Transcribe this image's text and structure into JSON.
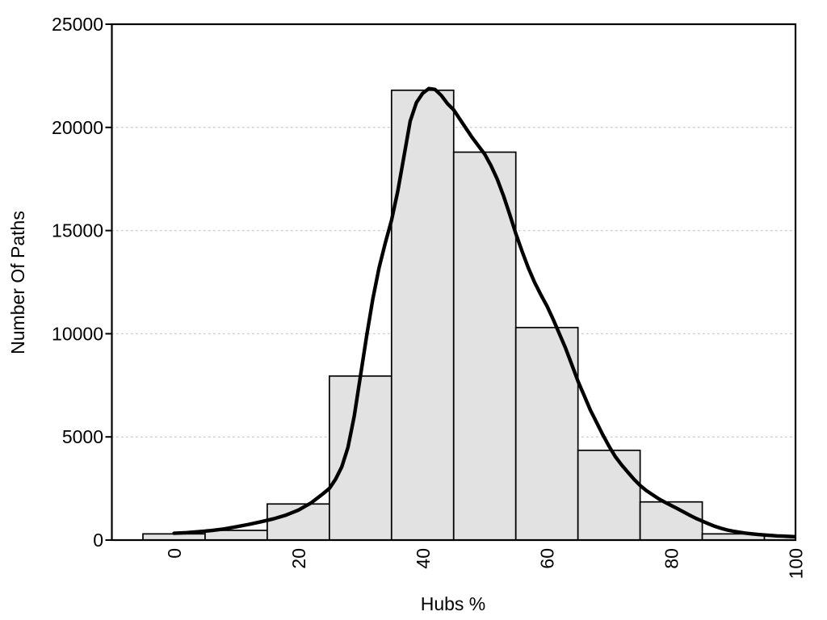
{
  "chart_data": {
    "type": "bar",
    "subtype": "histogram-with-density-curve",
    "title": "",
    "xlabel": "Hubs %",
    "ylabel": "Number Of Paths",
    "xlim": [
      -10,
      100
    ],
    "ylim": [
      0,
      25000
    ],
    "grid": "dotted-horizontal",
    "legend": "none",
    "x_ticks": [
      0,
      20,
      40,
      60,
      80,
      100
    ],
    "x_tick_labels": [
      "0",
      "20",
      "40",
      "60",
      "80",
      "100"
    ],
    "x_tick_label_rotation_deg": -90,
    "y_ticks": [
      0,
      5000,
      10000,
      15000,
      20000,
      25000
    ],
    "y_tick_labels": [
      "0",
      "5000",
      "10000",
      "15000",
      "20000",
      "25000"
    ],
    "grid_levels": [
      5000,
      10000,
      15000,
      20000
    ],
    "bin_width": 10,
    "bins": [
      {
        "start": -5,
        "end": 5,
        "count": 300
      },
      {
        "start": 5,
        "end": 15,
        "count": 470
      },
      {
        "start": 15,
        "end": 25,
        "count": 1750
      },
      {
        "start": 25,
        "end": 35,
        "count": 7950
      },
      {
        "start": 35,
        "end": 45,
        "count": 21800
      },
      {
        "start": 45,
        "end": 55,
        "count": 18800
      },
      {
        "start": 55,
        "end": 65,
        "count": 10300
      },
      {
        "start": 65,
        "end": 75,
        "count": 4350
      },
      {
        "start": 75,
        "end": 85,
        "count": 1850
      },
      {
        "start": 85,
        "end": 95,
        "count": 300
      },
      {
        "start": 95,
        "end": 105,
        "count": 200
      }
    ],
    "density_curve_points": [
      [
        0,
        330
      ],
      [
        2,
        360
      ],
      [
        4,
        405
      ],
      [
        6,
        460
      ],
      [
        8,
        535
      ],
      [
        10,
        640
      ],
      [
        12,
        760
      ],
      [
        14,
        890
      ],
      [
        16,
        1030
      ],
      [
        18,
        1210
      ],
      [
        20,
        1450
      ],
      [
        22,
        1790
      ],
      [
        24,
        2250
      ],
      [
        25,
        2500
      ],
      [
        26,
        2950
      ],
      [
        27,
        3550
      ],
      [
        28,
        4500
      ],
      [
        29,
        6000
      ],
      [
        30,
        7950
      ],
      [
        31,
        9900
      ],
      [
        32,
        11700
      ],
      [
        33,
        13200
      ],
      [
        34,
        14400
      ],
      [
        35,
        15500
      ],
      [
        36,
        16900
      ],
      [
        37,
        18600
      ],
      [
        38,
        20300
      ],
      [
        39,
        21200
      ],
      [
        40,
        21650
      ],
      [
        41,
        21880
      ],
      [
        42,
        21840
      ],
      [
        43,
        21550
      ],
      [
        44,
        21150
      ],
      [
        45,
        20850
      ],
      [
        46,
        20400
      ],
      [
        47,
        19950
      ],
      [
        48,
        19500
      ],
      [
        49,
        19100
      ],
      [
        50,
        18700
      ],
      [
        51,
        18150
      ],
      [
        52,
        17500
      ],
      [
        53,
        16700
      ],
      [
        54,
        15800
      ],
      [
        55,
        14850
      ],
      [
        56,
        14000
      ],
      [
        57,
        13200
      ],
      [
        58,
        12500
      ],
      [
        59,
        11900
      ],
      [
        60,
        11350
      ],
      [
        61,
        10700
      ],
      [
        62,
        10000
      ],
      [
        63,
        9300
      ],
      [
        64,
        8500
      ],
      [
        65,
        7700
      ],
      [
        66,
        7000
      ],
      [
        67,
        6300
      ],
      [
        68,
        5700
      ],
      [
        69,
        5100
      ],
      [
        70,
        4550
      ],
      [
        71,
        4050
      ],
      [
        72,
        3650
      ],
      [
        73,
        3300
      ],
      [
        74,
        2950
      ],
      [
        75,
        2650
      ],
      [
        76,
        2400
      ],
      [
        77,
        2200
      ],
      [
        78,
        2000
      ],
      [
        79,
        1830
      ],
      [
        80,
        1680
      ],
      [
        81,
        1520
      ],
      [
        82,
        1360
      ],
      [
        83,
        1200
      ],
      [
        84,
        1050
      ],
      [
        85,
        920
      ],
      [
        86,
        790
      ],
      [
        87,
        670
      ],
      [
        88,
        570
      ],
      [
        89,
        490
      ],
      [
        90,
        430
      ],
      [
        91,
        380
      ],
      [
        92,
        335
      ],
      [
        93,
        300
      ],
      [
        94,
        270
      ],
      [
        95,
        245
      ],
      [
        96,
        225
      ],
      [
        97,
        205
      ],
      [
        98,
        190
      ],
      [
        99,
        175
      ],
      [
        100,
        165
      ]
    ],
    "colors": {
      "background": "#ffffff",
      "bar_fill": "#e2e2e2",
      "bar_stroke": "#000000",
      "curve": "#000000",
      "grid": "#d0d0d0",
      "axis": "#000000",
      "text": "#000000"
    }
  }
}
